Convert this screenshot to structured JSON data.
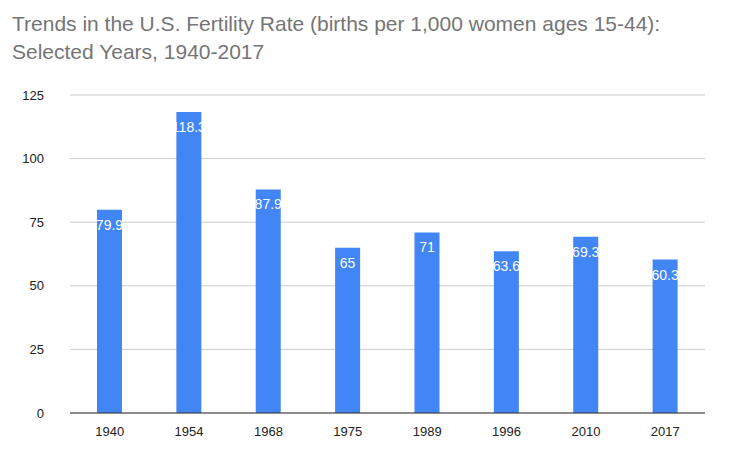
{
  "chart_data": {
    "type": "bar",
    "title": "Trends in the U.S. Fertility Rate (births per 1,000 women ages 15-44): Selected Years, 1940-2017",
    "categories": [
      "1940",
      "1954",
      "1968",
      "1975",
      "1989",
      "1996",
      "2010",
      "2017"
    ],
    "values": [
      79.9,
      118.3,
      87.9,
      65,
      71,
      63.6,
      69.3,
      60.3
    ],
    "color": "#4285f4",
    "ylim": [
      0,
      125
    ],
    "yticks": [
      0,
      25,
      50,
      75,
      100,
      125
    ],
    "grid": true,
    "data_labels": true
  }
}
